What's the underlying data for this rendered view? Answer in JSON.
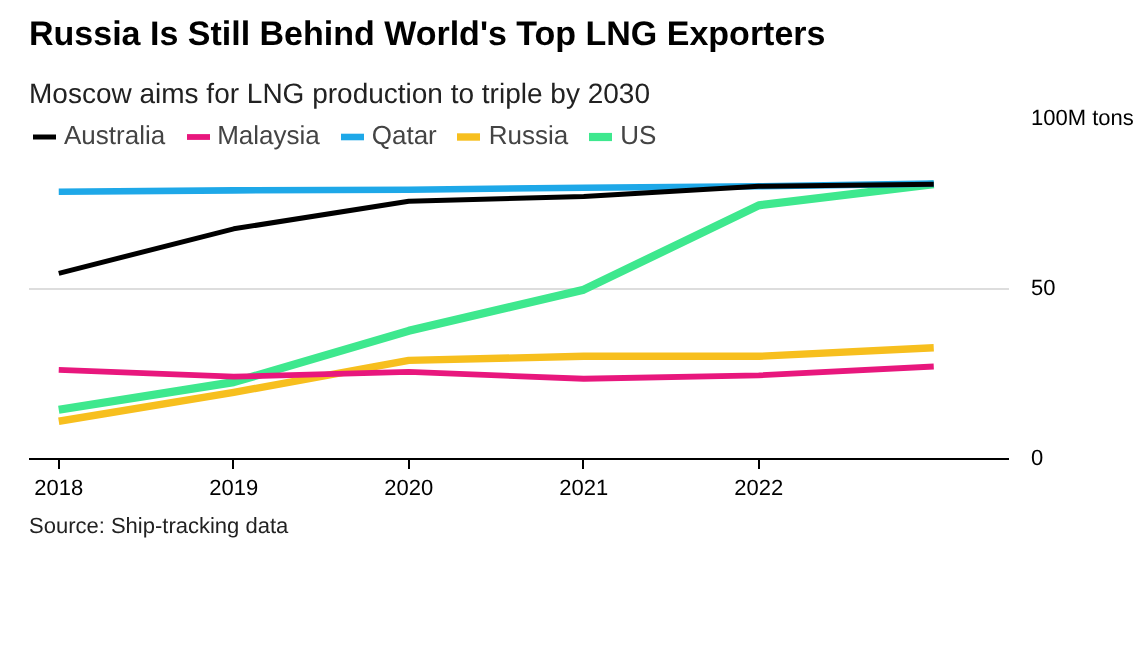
{
  "chart_data": {
    "type": "line",
    "title": "Russia Is Still Behind World's Top LNG Exporters",
    "subtitle": "Moscow aims for LNG production to triple by 2030",
    "x": [
      2018,
      2019,
      2020,
      2021,
      2022,
      2023
    ],
    "xlim": [
      2017.83,
      2023.43
    ],
    "xticks": [
      2018,
      2019,
      2020,
      2021,
      2022
    ],
    "ylim": [
      0,
      100
    ],
    "yticks": [
      {
        "value": 0,
        "label": "0"
      },
      {
        "value": 50,
        "label": "50"
      },
      {
        "value": 100,
        "label": "100M tons"
      }
    ],
    "grid": "y",
    "legend": "top",
    "marker": "none",
    "line_style": "solid",
    "series": [
      {
        "name": "Australia",
        "color": "#000000",
        "values": [
          54.6,
          67.7,
          75.8,
          77.2,
          80.2,
          80.8
        ]
      },
      {
        "name": "Malaysia",
        "color": "#e8177d",
        "values": [
          26.2,
          24.2,
          25.6,
          23.6,
          24.6,
          27.2
        ]
      },
      {
        "name": "Qatar",
        "color": "#1ea8e8",
        "values": [
          78.6,
          79.0,
          79.2,
          79.8,
          80.2,
          81.0
        ]
      },
      {
        "name": "Russia",
        "color": "#f7bf1e",
        "values": [
          11.1,
          19.6,
          29.0,
          30.2,
          30.2,
          32.7
        ]
      },
      {
        "name": "US",
        "color": "#3ee88e",
        "values": [
          14.5,
          22.6,
          37.7,
          49.8,
          74.6,
          80.8
        ]
      }
    ],
    "annotations": [
      "Source: Ship-tracking data"
    ]
  }
}
